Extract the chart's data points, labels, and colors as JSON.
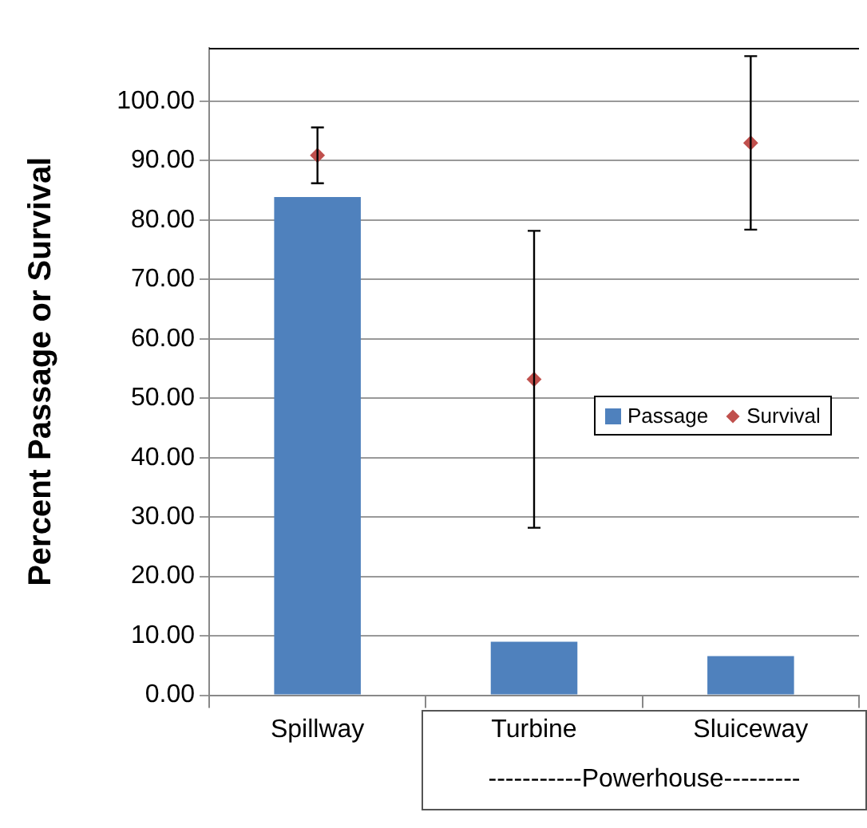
{
  "chart_data": {
    "type": "bar",
    "ylabel": "Percent Passage or Survival",
    "categories": [
      "Spillway",
      "Turbine",
      "Sluiceway"
    ],
    "series": [
      {
        "name": "Passage",
        "color": "#4f81bd",
        "values": [
          83.9,
          9.0,
          6.6
        ]
      },
      {
        "name": "Survival",
        "type": "scatter",
        "color": "#c0504d",
        "values": [
          90.9,
          53.2,
          93.0
        ],
        "errors": [
          4.7,
          25,
          14.6
        ]
      }
    ],
    "ylim": [
      0,
      109
    ],
    "yticks": [
      {
        "value": 0,
        "label": "0.00"
      },
      {
        "value": 10,
        "label": "10.00"
      },
      {
        "value": 20,
        "label": "20.00"
      },
      {
        "value": 30,
        "label": "30.00"
      },
      {
        "value": 40,
        "label": "40.00"
      },
      {
        "value": 50,
        "label": "50.00"
      },
      {
        "value": 60,
        "label": "60.00"
      },
      {
        "value": 70,
        "label": "70.00"
      },
      {
        "value": 80,
        "label": "80.00"
      },
      {
        "value": 90,
        "label": "90.00"
      },
      {
        "value": 100,
        "label": "100.00"
      }
    ],
    "grid": "y",
    "legend": "right",
    "marker": "diamond",
    "annotations": [
      "-----------Powerhouse---------"
    ]
  }
}
